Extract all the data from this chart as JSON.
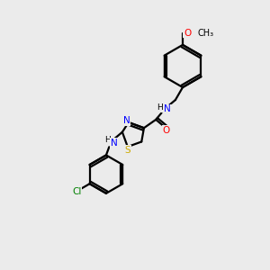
{
  "bg_color": "#ebebeb",
  "bond_color": "#000000",
  "N_color": "#0000ff",
  "O_color": "#ff0000",
  "S_color": "#ccaa00",
  "Cl_color": "#008000",
  "lw": 1.6,
  "xlim": [
    0,
    10
  ],
  "ylim": [
    0,
    10
  ]
}
